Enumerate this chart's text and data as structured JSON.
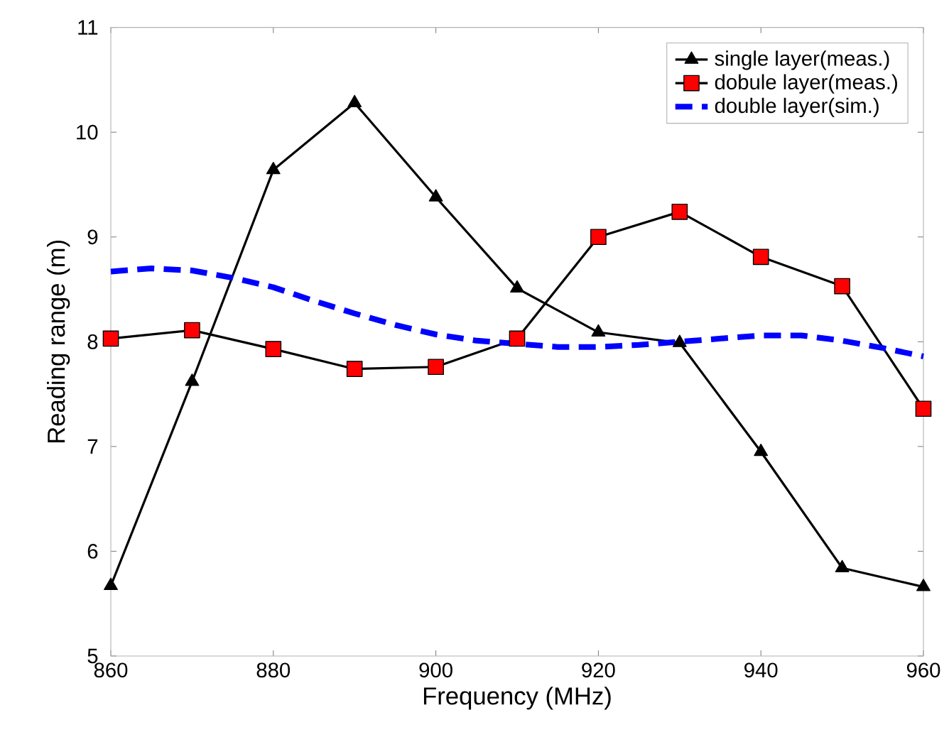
{
  "chart_data": {
    "type": "line",
    "xlabel": "Frequency (MHz)",
    "ylabel": "Reading range (m)",
    "xlim": [
      860,
      960
    ],
    "xticks": [
      860,
      880,
      900,
      920,
      940,
      960
    ],
    "ylim": [
      5,
      11
    ],
    "yticks": [
      5,
      6,
      7,
      8,
      9,
      10,
      11
    ],
    "grid": false,
    "legend": "top right",
    "series": [
      {
        "name": "single layer(meas.)",
        "color": "#000000",
        "marker": "triangle",
        "line_style": "solid",
        "x": [
          860,
          870,
          880,
          890,
          900,
          910,
          920,
          930,
          940,
          950,
          960
        ],
        "values": [
          5.67,
          7.62,
          9.64,
          10.28,
          9.38,
          8.51,
          8.09,
          7.99,
          6.95,
          5.84,
          5.66
        ]
      },
      {
        "name": "dobule layer(meas.)",
        "color": "#ff0000",
        "marker": "square",
        "line_style": "solid",
        "x": [
          860,
          870,
          880,
          890,
          900,
          910,
          920,
          930,
          940,
          950,
          960
        ],
        "values": [
          8.03,
          8.11,
          7.93,
          7.74,
          7.76,
          8.03,
          9.0,
          9.24,
          8.81,
          8.53,
          7.36
        ]
      },
      {
        "name": "double layer(sim.)",
        "color": "#0000ff",
        "marker": "none",
        "line_style": "dashed",
        "x": [
          860,
          865,
          870,
          875,
          880,
          885,
          890,
          895,
          900,
          905,
          910,
          915,
          920,
          925,
          930,
          935,
          940,
          945,
          950,
          955,
          960
        ],
        "values": [
          8.67,
          8.7,
          8.68,
          8.61,
          8.52,
          8.39,
          8.27,
          8.16,
          8.07,
          8.01,
          7.98,
          7.95,
          7.95,
          7.97,
          8.0,
          8.03,
          8.06,
          8.06,
          8.01,
          7.94,
          7.86
        ]
      }
    ]
  }
}
